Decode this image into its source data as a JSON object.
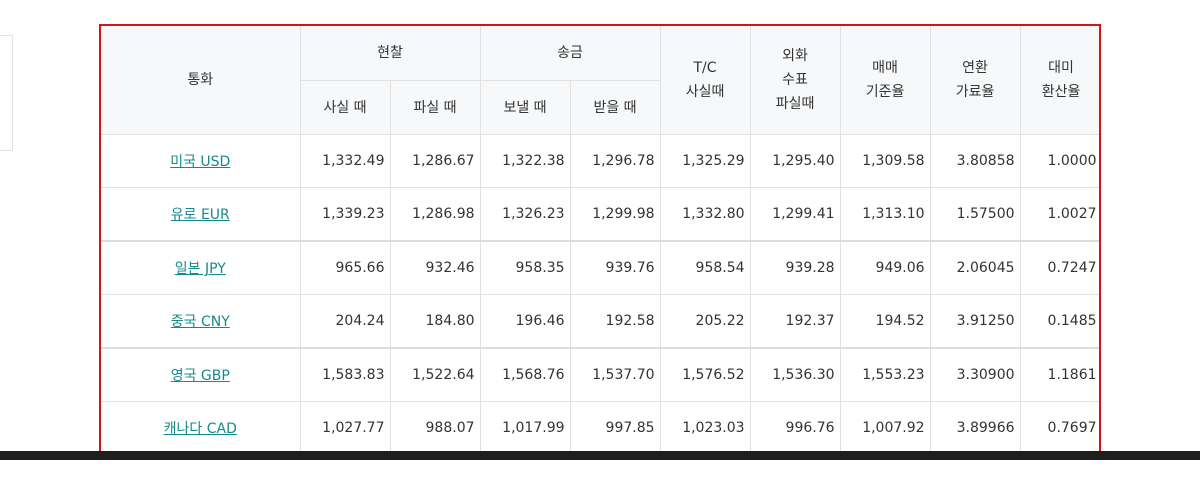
{
  "table": {
    "headers": {
      "currency": "통화",
      "cash": "현찰",
      "transfer": "송금",
      "cash_buy": "사실 때",
      "cash_sell": "파실 때",
      "send": "보낼 때",
      "receive": "받을 때",
      "tc_buy": "T/C\n사실때",
      "check_sell": "외화\n수표\n파실때",
      "base_rate": "매매\n기준율",
      "conversion": "연환\n가료율",
      "usd_rate": "대미\n환산율"
    },
    "rows": [
      {
        "currency": "미국 USD",
        "cash_buy": "1,332.49",
        "cash_sell": "1,286.67",
        "send": "1,322.38",
        "receive": "1,296.78",
        "tc_buy": "1,325.29",
        "check_sell": "1,295.40",
        "base_rate": "1,309.58",
        "conversion": "3.80858",
        "usd_rate": "1.0000"
      },
      {
        "currency": "유로 EUR",
        "cash_buy": "1,339.23",
        "cash_sell": "1,286.98",
        "send": "1,326.23",
        "receive": "1,299.98",
        "tc_buy": "1,332.80",
        "check_sell": "1,299.41",
        "base_rate": "1,313.10",
        "conversion": "1.57500",
        "usd_rate": "1.0027"
      },
      {
        "currency": "일본 JPY",
        "cash_buy": "965.66",
        "cash_sell": "932.46",
        "send": "958.35",
        "receive": "939.76",
        "tc_buy": "958.54",
        "check_sell": "939.28",
        "base_rate": "949.06",
        "conversion": "2.06045",
        "usd_rate": "0.7247"
      },
      {
        "currency": "중국 CNY",
        "cash_buy": "204.24",
        "cash_sell": "184.80",
        "send": "196.46",
        "receive": "192.58",
        "tc_buy": "205.22",
        "check_sell": "192.37",
        "base_rate": "194.52",
        "conversion": "3.91250",
        "usd_rate": "0.1485"
      },
      {
        "currency": "영국 GBP",
        "cash_buy": "1,583.83",
        "cash_sell": "1,522.64",
        "send": "1,568.76",
        "receive": "1,537.70",
        "tc_buy": "1,576.52",
        "check_sell": "1,536.30",
        "base_rate": "1,553.23",
        "conversion": "3.30900",
        "usd_rate": "1.1861"
      },
      {
        "currency": "캐나다 CAD",
        "cash_buy": "1,027.77",
        "cash_sell": "988.07",
        "send": "1,017.99",
        "receive": "997.85",
        "tc_buy": "1,023.03",
        "check_sell": "996.76",
        "base_rate": "1,007.92",
        "conversion": "3.89966",
        "usd_rate": "0.7697"
      }
    ]
  }
}
